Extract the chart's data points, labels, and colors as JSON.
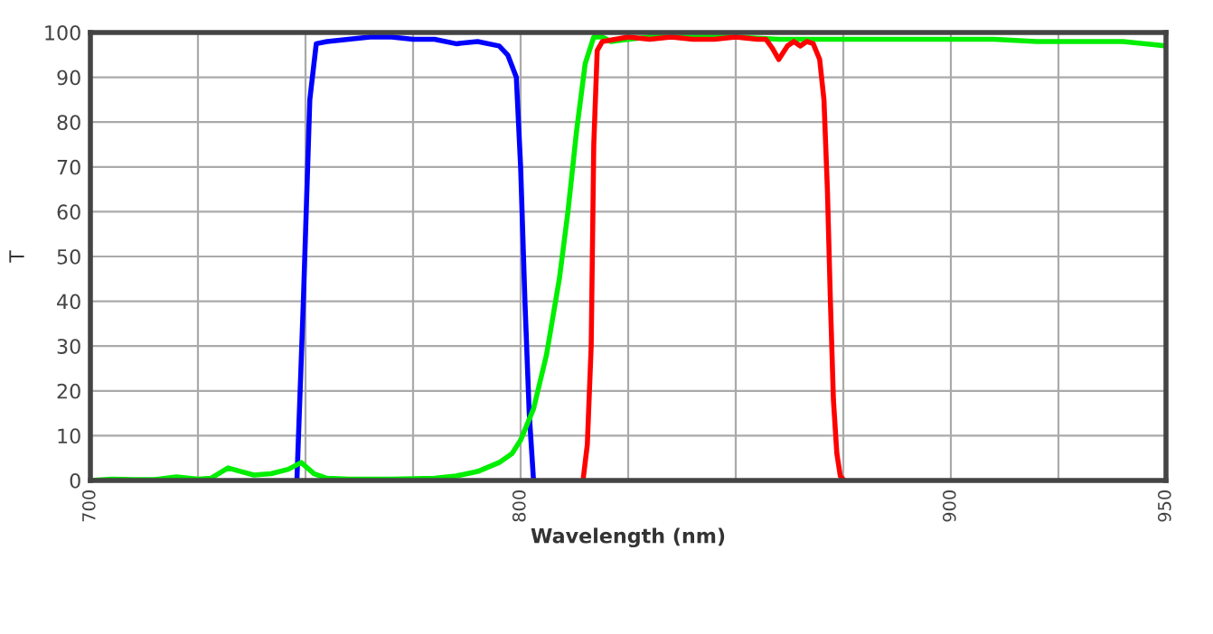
{
  "chart_data": {
    "type": "line",
    "xlabel": "Wavelength (nm)",
    "ylabel": "T",
    "xlim": [
      700,
      950
    ],
    "ylim": [
      0,
      100
    ],
    "xticks": [
      700,
      {
        "value": 725,
        "label": null
      },
      {
        "value": 750,
        "label": null
      },
      {
        "value": 775,
        "label": null
      },
      800,
      {
        "value": 825,
        "label": null
      },
      {
        "value": 850,
        "label": null
      },
      {
        "value": 875,
        "label": null
      },
      900,
      {
        "value": 925,
        "label": null
      },
      950
    ],
    "yticks": [
      0,
      10,
      20,
      30,
      40,
      50,
      60,
      70,
      80,
      90,
      100
    ],
    "grid": true,
    "line_style": "solid",
    "marker": "none",
    "series": [
      {
        "color": "#0000ff",
        "x": [
          748,
          749.5,
          751,
          752.5,
          755,
          760,
          765,
          770,
          775,
          780,
          785,
          790,
          795,
          797,
          799,
          800,
          801,
          802,
          803
        ],
        "values": [
          0,
          40,
          85,
          97.5,
          98,
          98.5,
          99,
          99,
          98.5,
          98.5,
          97.5,
          98,
          97,
          95,
          90,
          70,
          40,
          15,
          0
        ]
      },
      {
        "color": "#00ee00",
        "x": [
          700,
          705,
          710,
          715,
          720,
          725,
          728,
          732,
          735,
          738,
          742,
          746,
          749,
          752,
          755,
          760,
          770,
          780,
          785,
          790,
          795,
          798,
          800,
          803,
          806,
          809,
          811,
          813,
          815,
          817,
          819,
          821,
          825,
          830,
          840,
          850,
          860,
          870,
          880,
          890,
          900,
          910,
          920,
          930,
          940,
          950
        ],
        "values": [
          0,
          0.3,
          0.2,
          0.2,
          0.8,
          0.3,
          0.5,
          2.8,
          2,
          1.2,
          1.5,
          2.5,
          4,
          1.5,
          0.5,
          0.3,
          0.3,
          0.5,
          1,
          2,
          4,
          6,
          9,
          16,
          28,
          45,
          60,
          78,
          93,
          99,
          99,
          98,
          98.5,
          99,
          99,
          99,
          98.5,
          98.5,
          98.5,
          98.5,
          98.5,
          98.5,
          98,
          98,
          98,
          97
        ]
      },
      {
        "color": "#ff0000",
        "x": [
          814.5,
          815.5,
          816.4,
          817,
          817.8,
          819,
          822,
          825,
          830,
          835,
          840,
          845,
          850,
          855,
          857,
          858.5,
          860,
          862,
          863.5,
          865,
          866.5,
          868,
          869.5,
          870.5,
          871.3,
          872,
          872.7,
          873.5,
          874.3,
          875.2
        ],
        "values": [
          0,
          8,
          30,
          75,
          96,
          98,
          98.5,
          99,
          98.5,
          99,
          98.5,
          98.5,
          99,
          98.5,
          98.5,
          96.5,
          94,
          97,
          98,
          97,
          98,
          97.5,
          94,
          85,
          65,
          40,
          18,
          6,
          1,
          0
        ]
      }
    ]
  }
}
